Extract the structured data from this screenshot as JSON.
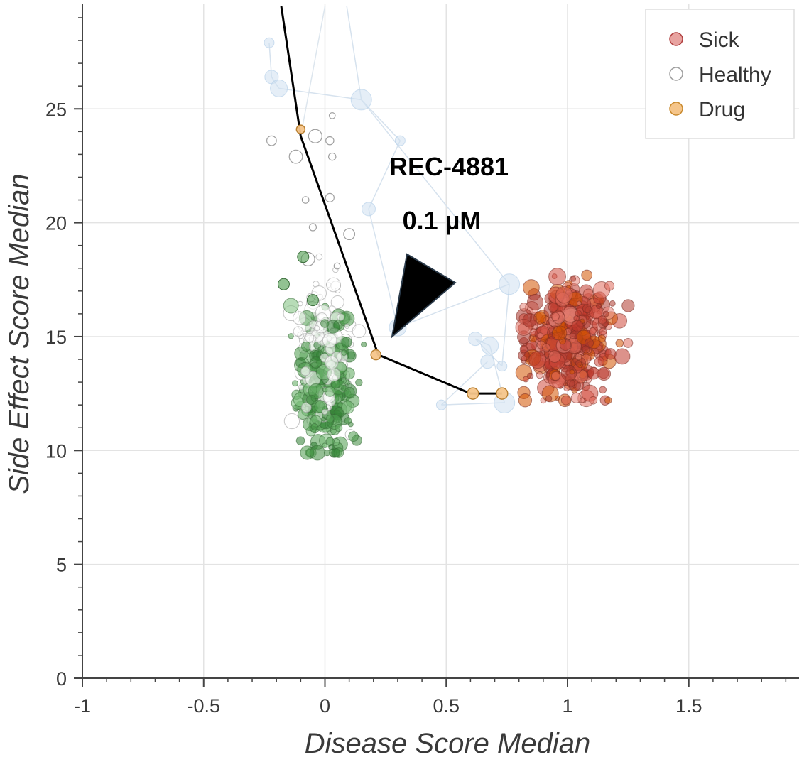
{
  "chart_data": {
    "type": "scatter",
    "title": "",
    "xlabel": "Disease Score Median",
    "ylabel": "Side Effect Score Median",
    "xlim": [
      -1,
      1.95
    ],
    "ylim": [
      0,
      29.5
    ],
    "xticks": [
      -1,
      -0.5,
      0,
      0.5,
      1,
      1.5
    ],
    "xtick_labels": [
      "-1",
      "-0.5",
      "0",
      "0.5",
      "1",
      "1.5"
    ],
    "yticks": [
      0,
      5,
      10,
      15,
      20,
      25
    ],
    "ytick_labels": [
      "0",
      "5",
      "10",
      "15",
      "20",
      "25"
    ],
    "grid": true,
    "legend_position": "top-right",
    "legend": [
      {
        "label": "Sick",
        "color": "#d9534f",
        "style": "filled"
      },
      {
        "label": "Healthy",
        "color": "#9e9e9e",
        "style": "hollow"
      },
      {
        "label": "Drug",
        "color": "#f0a742",
        "style": "filled"
      }
    ],
    "colors": {
      "sick": "#c0392b",
      "healthy_green": "#3d8b3d",
      "healthy_gray": "#bdbdbd",
      "drug": "#f2b35a",
      "trajectory_faint": "#b8d2ea",
      "trajectory_line": "#000000"
    },
    "clusters": [
      {
        "series": "Sick",
        "center": [
          1.0,
          14.8
        ],
        "spread": [
          0.09,
          1.25
        ],
        "count": 420,
        "range_x": [
          0.82,
          1.25
        ],
        "range_y": [
          12.2,
          18.0
        ]
      },
      {
        "series": "Healthy",
        "center": [
          0.0,
          13.3
        ],
        "spread": [
          0.055,
          1.7
        ],
        "count": 460,
        "range_x": [
          -0.14,
          0.16
        ],
        "range_y": [
          9.9,
          18.5
        ]
      }
    ],
    "healthy_outliers": [
      {
        "x": -0.04,
        "y": 23.8
      },
      {
        "x": 0.03,
        "y": 24.7
      },
      {
        "x": 0.02,
        "y": 23.6
      },
      {
        "x": 0.03,
        "y": 22.9
      },
      {
        "x": -0.12,
        "y": 22.9
      },
      {
        "x": -0.08,
        "y": 21.0
      },
      {
        "x": 0.02,
        "y": 21.1
      },
      {
        "x": -0.22,
        "y": 23.6
      },
      {
        "x": 0.1,
        "y": 19.5
      },
      {
        "x": -0.05,
        "y": 19.8
      },
      {
        "x": 0.05,
        "y": 18.1
      },
      {
        "x": -0.07,
        "y": 18.4
      }
    ],
    "faint_trajectory": {
      "series": "Drug (other doses)",
      "x": [
        -0.23,
        -0.22,
        -0.19,
        0.15,
        0.31,
        0.18,
        0.3,
        0.76,
        0.73,
        0.62,
        0.68,
        0.74,
        0.48,
        0.67
      ],
      "y": [
        27.9,
        26.4,
        25.9,
        25.4,
        23.6,
        20.6,
        15.4,
        17.3,
        13.7,
        14.9,
        14.6,
        12.1,
        12.0,
        13.9
      ]
    },
    "drug_path": {
      "annotation_compound": "REC-4881",
      "annotation_dose": "0.1 µM",
      "line_x": [
        -0.18,
        -0.1,
        0.22,
        0.6,
        0.73
      ],
      "line_y": [
        29.5,
        23.8,
        14.2,
        12.5,
        12.5
      ],
      "points": [
        {
          "x": -0.1,
          "y": 24.1
        },
        {
          "x": 0.21,
          "y": 14.2
        },
        {
          "x": 0.61,
          "y": 12.5
        },
        {
          "x": 0.73,
          "y": 12.5
        }
      ]
    }
  }
}
